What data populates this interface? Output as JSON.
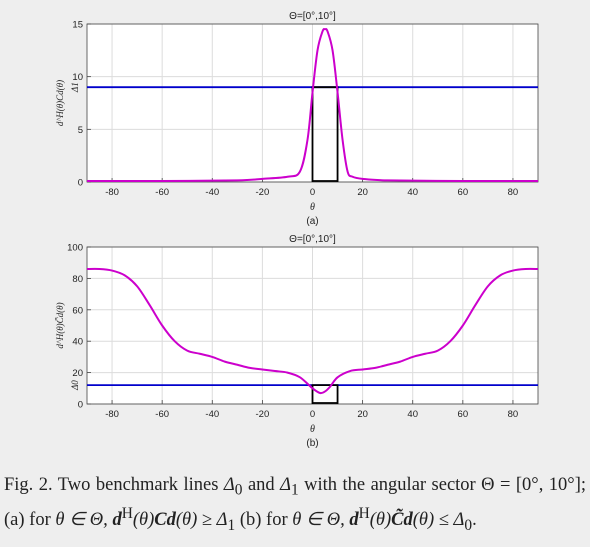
{
  "chart_data": [
    {
      "type": "line",
      "title": "Θ=[0°,10°]",
      "xlabel": "θ",
      "ylabel": "d^H(θ)Cd(θ)",
      "sublabel": "(a)",
      "xlim": [
        -90,
        90
      ],
      "ylim": [
        0,
        15
      ],
      "xticks": [
        -80,
        -60,
        -40,
        -20,
        0,
        20,
        40,
        60,
        80
      ],
      "yticks": [
        0,
        5,
        10,
        15
      ],
      "grid": true,
      "benchmark": {
        "name": "Δ1",
        "value": 9.0,
        "color": "#0000cc"
      },
      "sector": {
        "x": [
          0,
          10
        ],
        "color": "#000000"
      },
      "series": [
        {
          "color": "#cc00cc",
          "x": [
            -90,
            -60,
            -30,
            -20,
            -10,
            -5,
            -2,
            0,
            2,
            4,
            5,
            6,
            8,
            10,
            12,
            14,
            16,
            20,
            30,
            60,
            90
          ],
          "y": [
            0.1,
            0.1,
            0.15,
            0.3,
            0.5,
            1.0,
            4.0,
            8.5,
            12.5,
            14.3,
            14.5,
            14.3,
            12.5,
            8.5,
            4.0,
            1.0,
            0.5,
            0.3,
            0.15,
            0.1,
            0.1
          ]
        }
      ]
    },
    {
      "type": "line",
      "title": "Θ=[0°,10°]",
      "xlabel": "θ",
      "ylabel": "d^H(θ)C̃d(θ)",
      "sublabel": "(b)",
      "xlim": [
        -90,
        90
      ],
      "ylim": [
        0,
        100
      ],
      "xticks": [
        -80,
        -60,
        -40,
        -20,
        0,
        20,
        40,
        60,
        80
      ],
      "yticks": [
        0,
        20,
        40,
        60,
        80,
        100
      ],
      "grid": true,
      "benchmark": {
        "name": "Δ0",
        "value": 12,
        "color": "#0000cc"
      },
      "sector": {
        "x": [
          0,
          10
        ],
        "color": "#000000"
      },
      "series": [
        {
          "color": "#cc00cc",
          "x": [
            -90,
            -85,
            -80,
            -75,
            -70,
            -65,
            -60,
            -55,
            -50,
            -45,
            -40,
            -35,
            -30,
            -25,
            -20,
            -15,
            -10,
            -5,
            0,
            3,
            5,
            7,
            10,
            15,
            20,
            25,
            30,
            35,
            40,
            45,
            50,
            55,
            60,
            65,
            70,
            75,
            80,
            85,
            90
          ],
          "y": [
            86,
            86,
            85,
            82,
            75,
            63,
            50,
            40,
            34,
            32,
            30,
            27,
            25,
            23,
            22,
            21,
            20,
            17,
            10,
            7,
            8,
            11,
            17,
            21,
            22,
            23,
            25,
            27,
            30,
            32,
            34,
            40,
            50,
            63,
            75,
            82,
            85,
            86,
            86
          ]
        }
      ]
    }
  ],
  "caption": {
    "p1": "Fig. 2.   Two benchmark lines ",
    "d0": "Δ",
    "sub0": "0",
    "p2": " and ",
    "d1": "Δ",
    "sub1": "1",
    "p3": " with the angular sector ",
    "theta_eq": "Θ = [0°, 10°]; (a) for ",
    "p4": "θ ∈ Θ, ",
    "expr_a": "d",
    "sup_a": "H",
    "expr_a2": "(θ)",
    "C": "C",
    "d": "d",
    "expr_a3": "(θ) ≥ Δ",
    "sub_a": "1",
    "p5": " (b) for ",
    "p6": "θ ∈ Θ, ",
    "expr_b": "d",
    "sup_b": "H",
    "expr_b2": "(θ)",
    "Ct": "C̃",
    "d2": "d",
    "expr_b3": "(θ) ≤ Δ",
    "sub_b": "0",
    "end": "."
  }
}
